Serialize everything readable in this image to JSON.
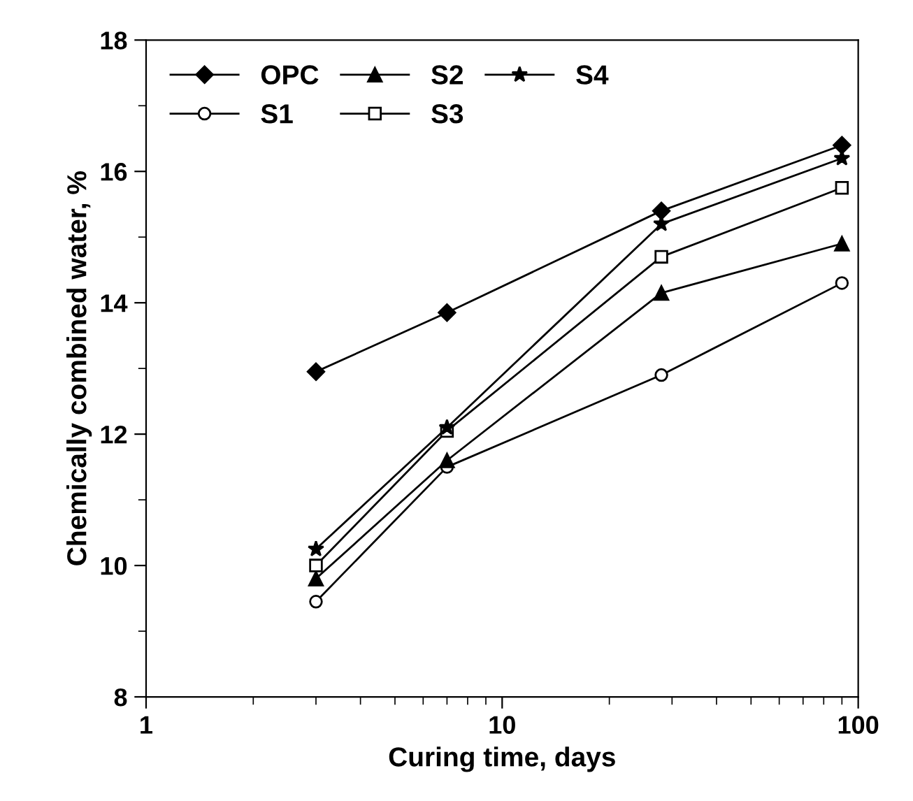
{
  "chart_data": {
    "type": "line",
    "xlabel": "Curing time, days",
    "ylabel": "Chemically combined water, %",
    "x": [
      3,
      7,
      28,
      90
    ],
    "log": "x",
    "xlim": [
      1,
      100
    ],
    "xticks": [
      1,
      10,
      100
    ],
    "ylim": [
      8,
      18
    ],
    "yticks": [
      8,
      10,
      12,
      14,
      16,
      18
    ],
    "grid": false,
    "legend": "top left",
    "line_style": "solid",
    "series": [
      {
        "name": "OPC",
        "color": "#000000",
        "marker": "diamond",
        "values": [
          12.95,
          13.85,
          15.4,
          16.4
        ]
      },
      {
        "name": "S1",
        "color": "#000000",
        "marker": "circle",
        "values": [
          9.45,
          11.5,
          12.9,
          14.3
        ]
      },
      {
        "name": "S2",
        "color": "#000000",
        "marker": "triangle",
        "values": [
          9.8,
          11.6,
          14.15,
          14.9
        ]
      },
      {
        "name": "S3",
        "color": "#000000",
        "marker": "square",
        "values": [
          10.0,
          12.05,
          14.7,
          15.75
        ]
      },
      {
        "name": "S4",
        "color": "#000000",
        "marker": "star",
        "values": [
          10.25,
          12.1,
          15.2,
          16.2
        ]
      }
    ]
  }
}
